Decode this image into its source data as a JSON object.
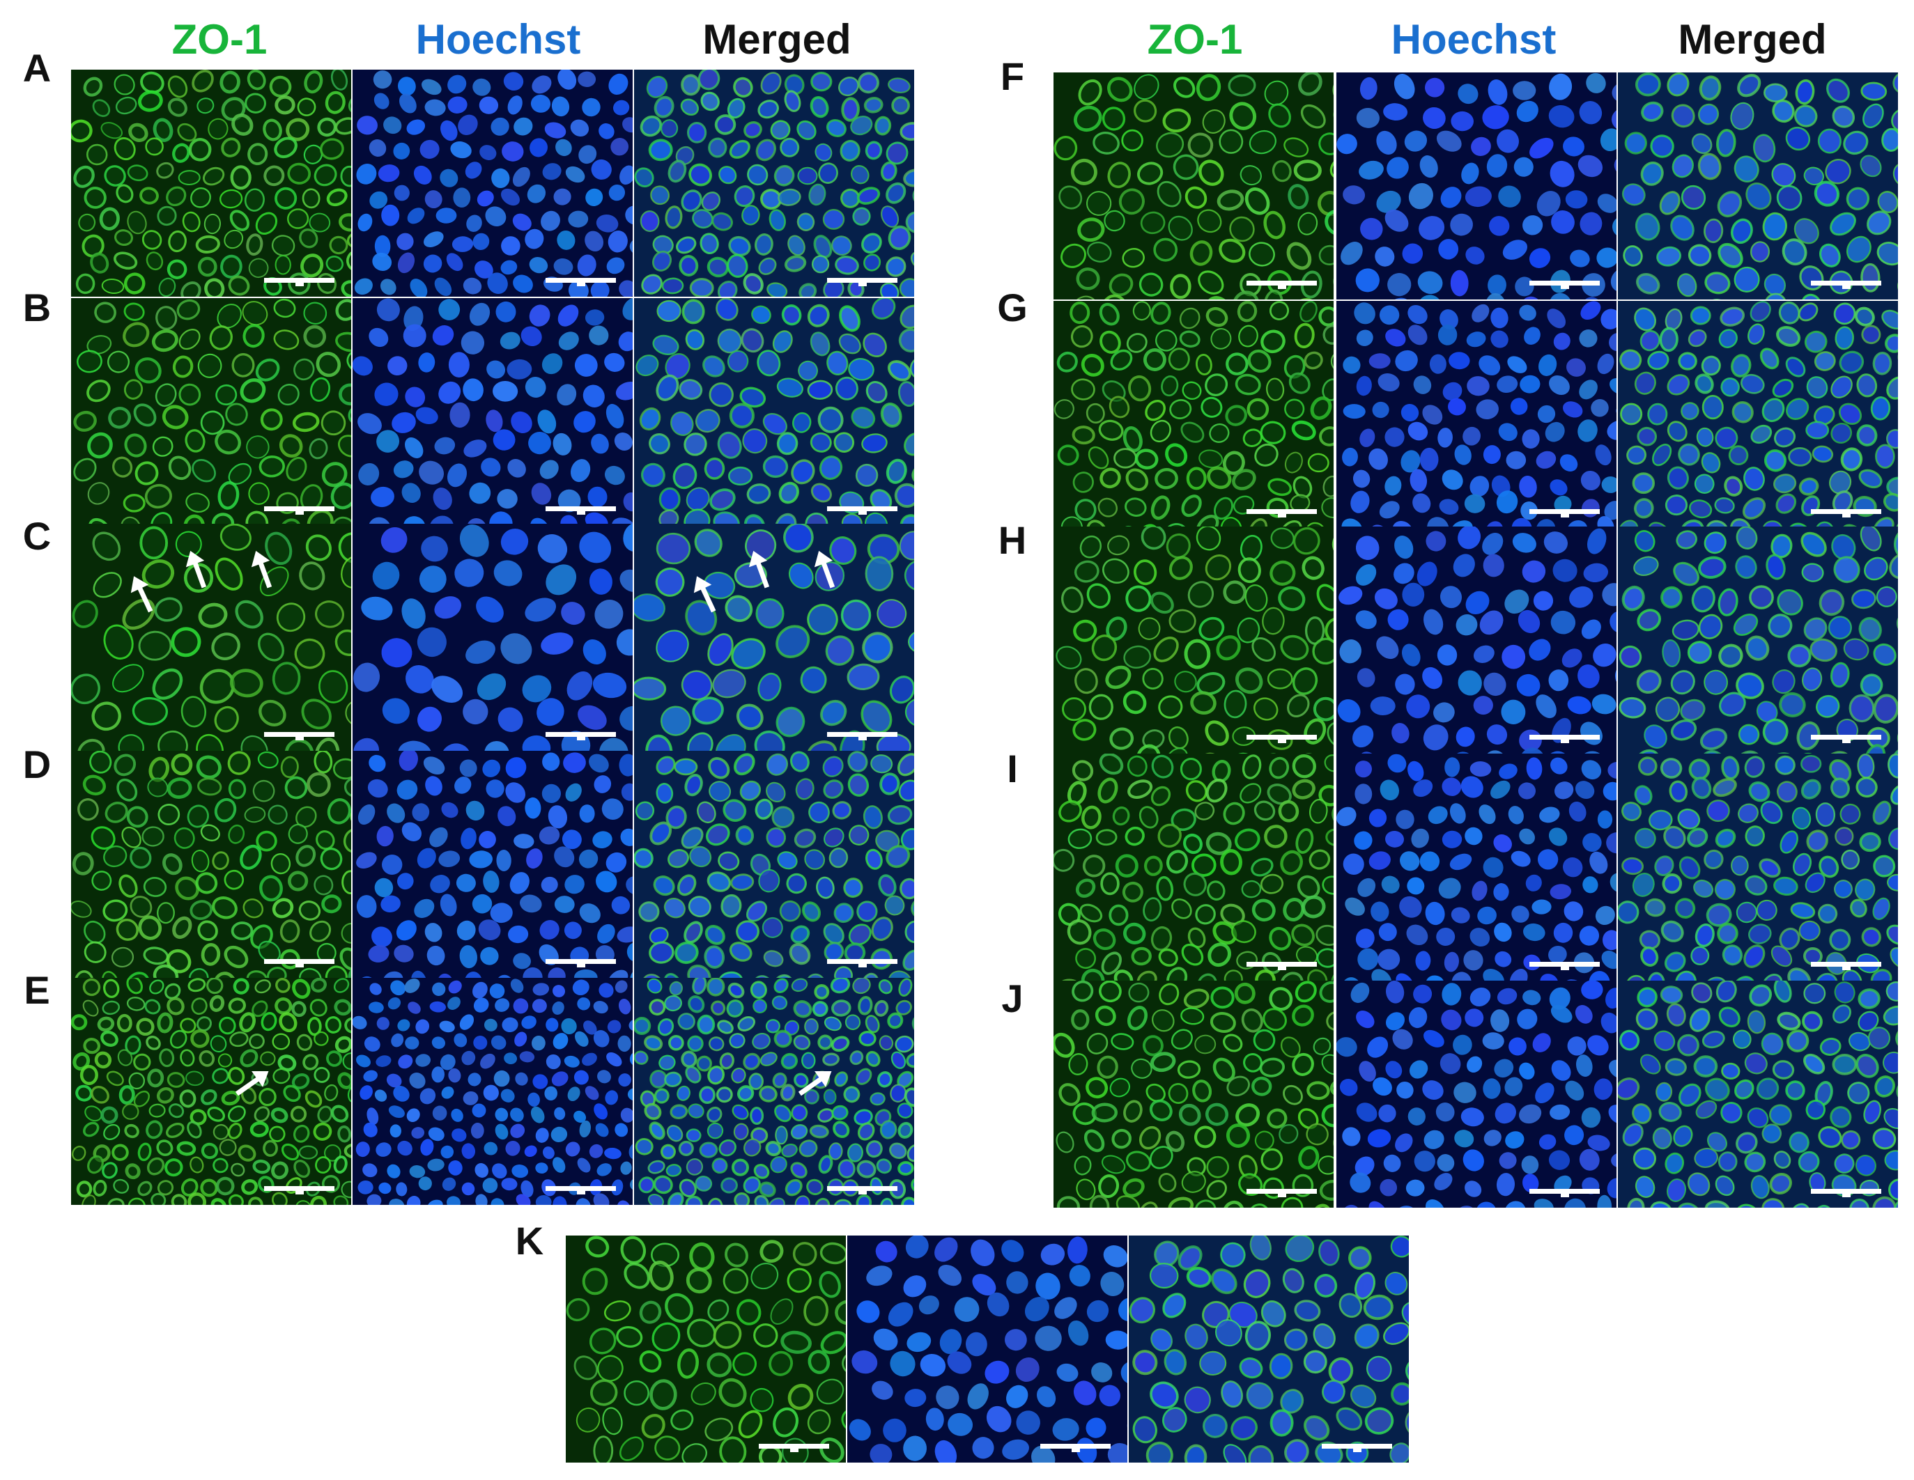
{
  "headers": {
    "zo1": "ZO-1",
    "hoechst": "Hoechst",
    "merged": "Merged"
  },
  "colors": {
    "zo1": "#18b43a",
    "hoechst": "#1a6fcf",
    "merged": "#111111",
    "tile_green_bg": "#062a06",
    "tile_blue_bg": "#020a3a",
    "tile_merged_bg": "#06204a"
  },
  "rows_left": [
    "A",
    "B",
    "C",
    "D",
    "E"
  ],
  "rows_right": [
    "F",
    "G",
    "H",
    "I",
    "J"
  ],
  "row_bottom": "K"
}
